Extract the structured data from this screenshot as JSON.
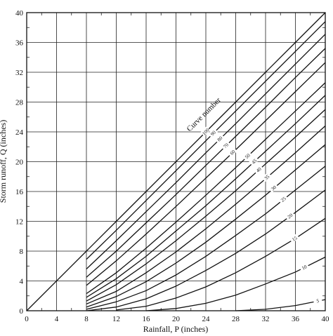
{
  "chart_data": {
    "type": "line",
    "title": "",
    "xlabel": "Rainfall, P (inches)",
    "ylabel": "Storm runoff, Q (inches)",
    "xlim": [
      0,
      40
    ],
    "ylim": [
      0,
      40
    ],
    "x_ticks": [
      "0",
      "4",
      "8",
      "12",
      "16",
      "20",
      "24",
      "28",
      "32",
      "36",
      "40"
    ],
    "y_ticks": [
      "0",
      "4",
      "8",
      "12",
      "16",
      "20",
      "24",
      "28",
      "32",
      "36",
      "40"
    ],
    "grid": true,
    "curve_family_label": "Curve number",
    "x": [
      0,
      8,
      12,
      16,
      20,
      24,
      28,
      32,
      36,
      40
    ],
    "series": [
      {
        "name": "100",
        "values": [
          0,
          8,
          12,
          16,
          20,
          24,
          28,
          32,
          36,
          40
        ]
      },
      {
        "name": "90",
        "values": [
          null,
          6.9,
          10.8,
          14.8,
          18.8,
          22.8,
          26.8,
          30.8,
          34.8,
          38.8
        ]
      },
      {
        "name": "80",
        "values": [
          null,
          5.6,
          9.4,
          13.3,
          17.2,
          21.2,
          25.1,
          29.1,
          33.1,
          37.1
        ]
      },
      {
        "name": "70",
        "values": [
          null,
          4.5,
          8.0,
          11.8,
          15.6,
          19.5,
          23.4,
          27.3,
          31.3,
          35.2
        ]
      },
      {
        "name": "60",
        "values": [
          null,
          3.4,
          6.7,
          10.3,
          14.0,
          17.8,
          21.6,
          25.5,
          29.4,
          33.3
        ]
      },
      {
        "name": "50",
        "values": [
          null,
          2.3,
          5.1,
          8.4,
          11.9,
          15.5,
          19.2,
          23.0,
          26.8,
          30.6
        ]
      },
      {
        "name": "45",
        "values": [
          null,
          1.8,
          4.3,
          7.3,
          10.7,
          14.1,
          17.7,
          21.4,
          25.1,
          28.9
        ]
      },
      {
        "name": "40",
        "values": [
          null,
          1.3,
          3.5,
          6.3,
          9.4,
          12.7,
          16.1,
          19.7,
          23.3,
          27.0
        ]
      },
      {
        "name": "35",
        "values": [
          null,
          0.9,
          2.6,
          5.1,
          7.9,
          11.0,
          14.3,
          17.7,
          21.2,
          24.8
        ]
      },
      {
        "name": "30",
        "values": [
          null,
          0.5,
          1.9,
          3.9,
          6.4,
          9.2,
          12.3,
          15.5,
          18.9,
          22.3
        ]
      },
      {
        "name": "25",
        "values": [
          null,
          0.2,
          1.2,
          2.7,
          4.8,
          7.3,
          10.1,
          13.0,
          16.2,
          19.4
        ]
      },
      {
        "name": "20",
        "values": [
          null,
          0.0,
          0.5,
          1.6,
          3.3,
          5.4,
          7.7,
          10.3,
          13.2,
          16.2
        ]
      },
      {
        "name": "15",
        "values": [
          null,
          null,
          0.1,
          0.6,
          1.7,
          3.2,
          5.1,
          7.3,
          9.7,
          12.4
        ]
      },
      {
        "name": "10",
        "values": [
          null,
          null,
          null,
          0.0,
          0.3,
          1.0,
          2.1,
          3.6,
          5.2,
          7.2
        ]
      },
      {
        "name": "5",
        "values": [
          null,
          null,
          null,
          null,
          null,
          null,
          0.0,
          0.2,
          0.7,
          1.5
        ]
      }
    ],
    "series_label_x": [
      24.0,
      25.0,
      25.9,
      26.7,
      27.6,
      29.6,
      30.5,
      31.1,
      32.2,
      33.1,
      34.4,
      35.3,
      35.9,
      37.2,
      39.0
    ]
  }
}
